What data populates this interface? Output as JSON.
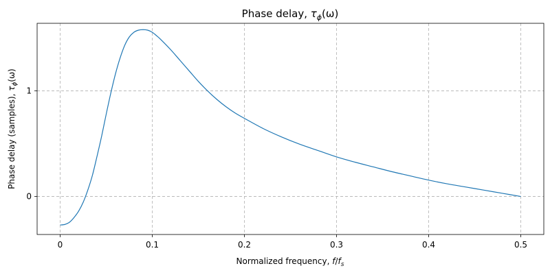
{
  "chart_data": {
    "type": "line",
    "title": "Phase delay, τφ(ω)",
    "title_parts": {
      "base": "Phase delay, ",
      "symbol": "τ",
      "sub": "ϕ",
      "arg": "(ω)"
    },
    "xlabel": "Normalized frequency, f/fs",
    "xlabel_parts": {
      "base": "Normalized frequency, ",
      "f": "f",
      "slash": "/",
      "fs": "f",
      "sub": "s"
    },
    "ylabel": "Phase delay (samples), τϕ(ω)",
    "ylabel_parts": {
      "base": "Phase delay (samples), ",
      "symbol": "τ",
      "sub": "ϕ",
      "arg": "(ω)"
    },
    "xlim": [
      -0.025,
      0.525
    ],
    "ylim": [
      -0.36,
      1.64
    ],
    "x_ticks": [
      0,
      0.1,
      0.2,
      0.3,
      0.4,
      0.5
    ],
    "x_tick_labels": [
      "0",
      "0.1",
      "0.2",
      "0.3",
      "0.4",
      "0.5"
    ],
    "y_ticks": [
      0,
      1
    ],
    "y_tick_labels": [
      "0",
      "1"
    ],
    "grid": true,
    "line_color": "#1f77b4",
    "series": [
      {
        "x": [
          0,
          0.005,
          0.01,
          0.015,
          0.02,
          0.025,
          0.03,
          0.035,
          0.04,
          0.045,
          0.05,
          0.055,
          0.06,
          0.065,
          0.07,
          0.075,
          0.08,
          0.085,
          0.09,
          0.095,
          0.1,
          0.105,
          0.11,
          0.12,
          0.13,
          0.14,
          0.15,
          0.16,
          0.17,
          0.18,
          0.19,
          0.2,
          0.22,
          0.24,
          0.26,
          0.28,
          0.3,
          0.32,
          0.34,
          0.36,
          0.38,
          0.4,
          0.42,
          0.44,
          0.46,
          0.48,
          0.5
        ],
        "y": [
          -0.27,
          -0.265,
          -0.245,
          -0.2,
          -0.14,
          -0.055,
          0.06,
          0.2,
          0.38,
          0.57,
          0.78,
          0.98,
          1.16,
          1.31,
          1.43,
          1.51,
          1.555,
          1.575,
          1.58,
          1.575,
          1.555,
          1.52,
          1.48,
          1.39,
          1.29,
          1.19,
          1.09,
          1.0,
          0.92,
          0.85,
          0.79,
          0.74,
          0.645,
          0.565,
          0.495,
          0.435,
          0.375,
          0.325,
          0.28,
          0.235,
          0.195,
          0.155,
          0.12,
          0.09,
          0.06,
          0.03,
          0.0
        ]
      }
    ]
  }
}
